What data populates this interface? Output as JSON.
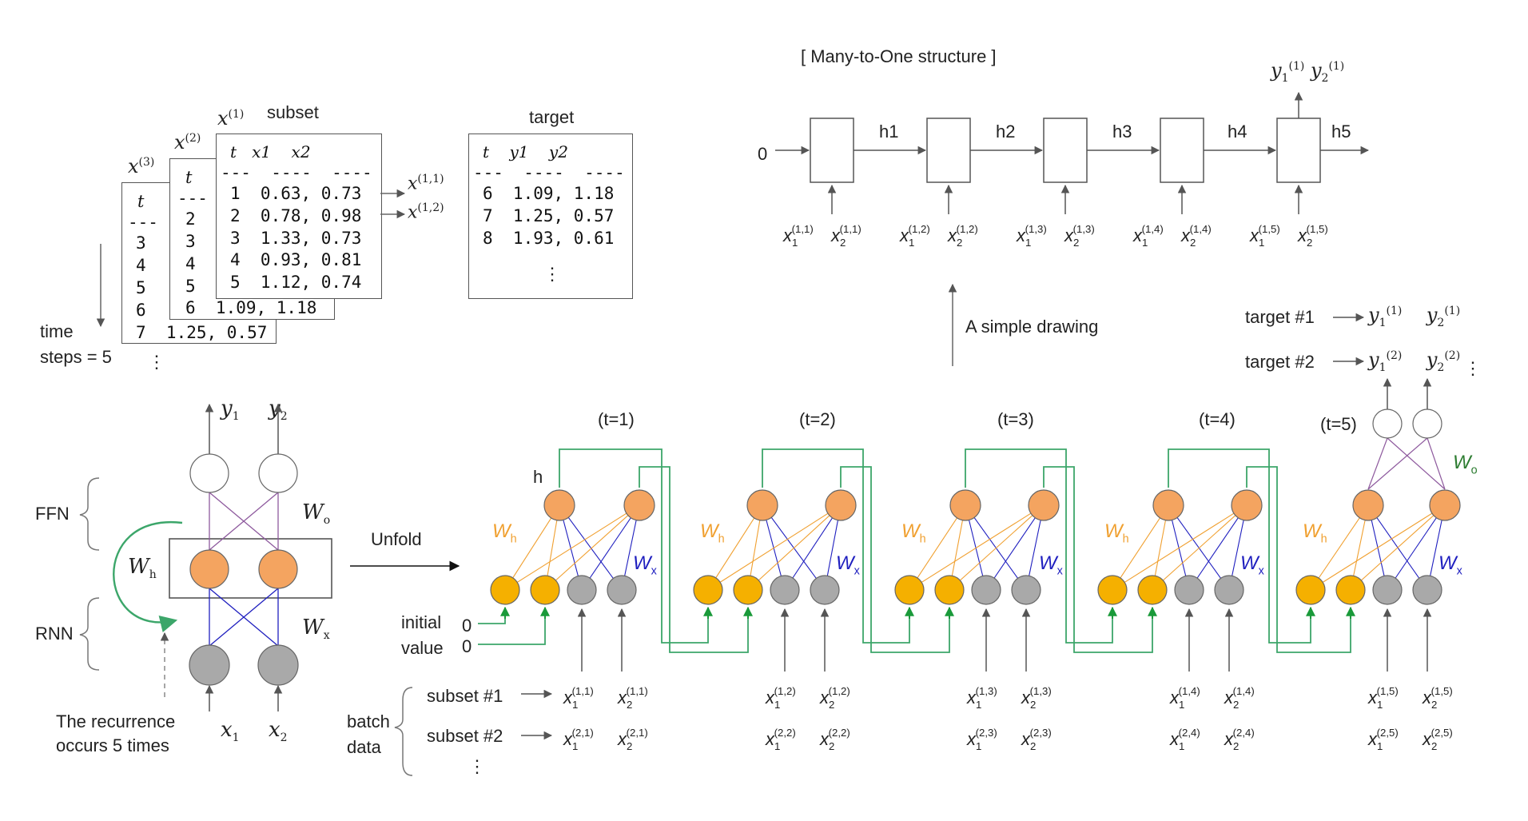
{
  "data_panel": {
    "subset_label": "subset",
    "target_label": "target",
    "time_label": "time",
    "steps_label": "steps = 5",
    "ellipsis": "⋮",
    "card3": {
      "name": "x(3)",
      "header": "t",
      "dashes": "---",
      "rows": [
        "3",
        "4",
        "5",
        "6",
        "7  1.25, 0.57"
      ]
    },
    "card2": {
      "name": "x(2)",
      "header": "t",
      "dashes": "---",
      "rows": [
        "2",
        "3",
        "4",
        "5",
        "6  1.09, 1.18"
      ]
    },
    "card1": {
      "name": "x(1)",
      "header": "t   x1    x2",
      "dashes": "---  ----  ----",
      "rows": [
        "1  0.63, 0.73",
        "2  0.78, 0.98",
        "3  1.33, 0.73",
        "4  0.93, 0.81",
        "5  1.12, 0.74"
      ]
    },
    "card1_arrows": [
      "x(1,1)",
      "x(1,2)"
    ],
    "target_card": {
      "header": "t    y1    y2",
      "dashes": "---  ----  ----",
      "rows": [
        "6  1.09, 1.18",
        "7  1.25, 0.57",
        "8  1.93, 0.61"
      ],
      "ellipsis": "⋮"
    }
  },
  "many_to_one": {
    "title": "[ Many-to-One structure ]",
    "zero": "0",
    "hidden_labels": [
      "h1",
      "h2",
      "h3",
      "h4",
      "h5"
    ],
    "inputs": [
      "(1,1)",
      "(1,2)",
      "(1,3)",
      "(1,4)",
      "(1,5)"
    ],
    "output": "y1(1) y2(1)"
  },
  "simple_drawing": "A simple drawing",
  "targets": [
    {
      "label": "target #1",
      "y1": "(1)",
      "y2": "(1)"
    },
    {
      "label": "target #2",
      "y1": "(2)",
      "y2": "(2)"
    }
  ],
  "targets_ellipsis": "⋮",
  "rnn_cell": {
    "ffn_label": "FFN",
    "rnn_label": "RNN",
    "wh_label": "W",
    "wo_label": "W",
    "wx_label": "W",
    "recurrence_line1": "The recurrence",
    "recurrence_line2": "occurs 5 times",
    "y_labels": [
      "y1",
      "y2"
    ],
    "x_labels": [
      "x1",
      "x2"
    ]
  },
  "unfold_label": "Unfold",
  "unrolled": {
    "time_steps": [
      "(t=1)",
      "(t=2)",
      "(t=3)",
      "(t=4)",
      "(t=5)"
    ],
    "h_label": "h",
    "initial_label_1": "initial",
    "initial_label_2": "value",
    "zeros": [
      "0",
      "0"
    ],
    "batch_label_1": "batch",
    "batch_label_2": "data",
    "subsets": [
      "subset #1",
      "subset #2"
    ],
    "subset_ellipsis": "⋮",
    "row1": [
      "(1,1)",
      "(1,2)",
      "(1,3)",
      "(1,4)",
      "(1,5)"
    ],
    "row2": [
      "(2,1)",
      "(2,2)",
      "(2,3)",
      "(2,4)",
      "(2,5)"
    ]
  },
  "colors": {
    "orange_node": "#F4A460",
    "yellow_node": "#F5B000",
    "gray_node": "#A9A9A9",
    "green_line": "#3CA66A",
    "wh_color": "#F0A030",
    "wx_color": "#1F1FBF",
    "wo_color": "#2E7D32",
    "purple_line": "#8E5A9E",
    "arrow_green": "#1A9A3A"
  }
}
